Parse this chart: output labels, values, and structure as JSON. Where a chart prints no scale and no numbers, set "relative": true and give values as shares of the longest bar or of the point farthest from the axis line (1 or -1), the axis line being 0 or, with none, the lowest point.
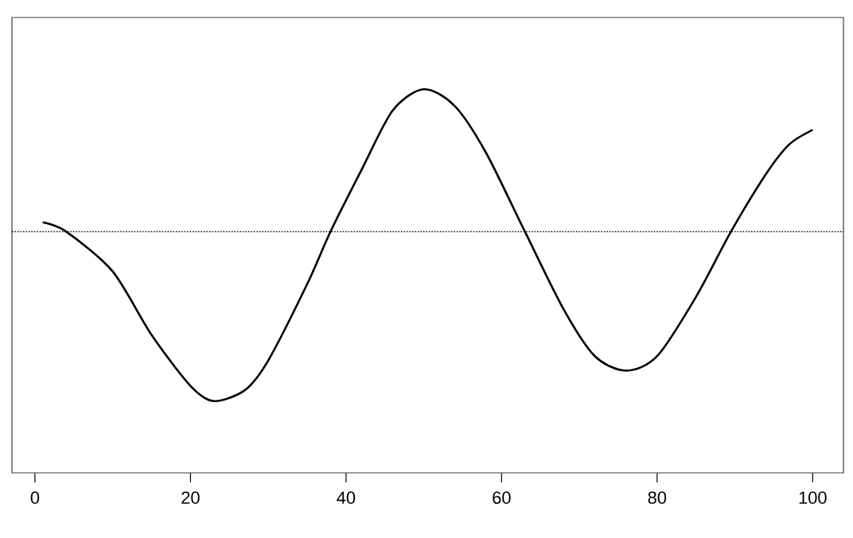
{
  "chart_data": {
    "type": "line",
    "relative": true,
    "tick_labels": "x",
    "grid": false,
    "x": [
      1,
      4,
      10,
      15,
      20,
      23,
      27,
      30,
      35,
      38,
      42,
      46,
      50,
      54,
      58,
      63,
      68,
      72,
      76,
      80,
      85,
      89.5,
      94,
      97,
      100
    ],
    "series": [
      {
        "color": "#000000",
        "line_style": "solid",
        "values": [
          0.055,
          0,
          -0.235,
          -0.61,
          -0.91,
          -1.0,
          -0.935,
          -0.76,
          -0.31,
          0,
          0.365,
          0.715,
          0.84,
          0.74,
          0.465,
          0,
          -0.46,
          -0.735,
          -0.82,
          -0.735,
          -0.385,
          0,
          0.34,
          0.515,
          0.6
        ]
      }
    ],
    "xlim": [
      -2.96,
      103.96
    ],
    "xticks": [
      0,
      20,
      40,
      60,
      80,
      100
    ],
    "ref_lines": [
      {
        "axis": "y",
        "value": 0,
        "color": "#000000",
        "line_style": "dotted"
      }
    ]
  }
}
